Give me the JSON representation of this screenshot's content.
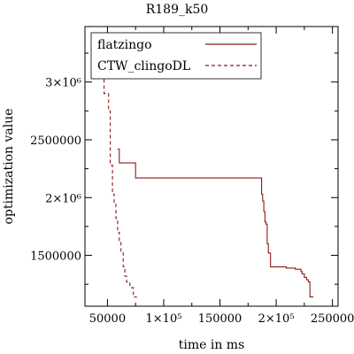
{
  "chart_data": {
    "type": "line",
    "title": "R189_k50",
    "xlabel": "time in ms",
    "ylabel": "optimization value",
    "xlim": [
      30000,
      255000
    ],
    "ylim": [
      1060000,
      3480000
    ],
    "grid": false,
    "legend_position": "top-left",
    "x_ticks": [
      {
        "value": 50000,
        "label": "50000"
      },
      {
        "value": 100000,
        "label": "1×10⁵"
      },
      {
        "value": 150000,
        "label": "150000"
      },
      {
        "value": 200000,
        "label": "2×10⁵"
      },
      {
        "value": 250000,
        "label": "250000"
      }
    ],
    "x_minor_ticks": [
      75000,
      125000,
      175000,
      225000
    ],
    "y_ticks": [
      {
        "value": 1500000,
        "label": "1500000"
      },
      {
        "value": 2000000,
        "label": "2×10⁶"
      },
      {
        "value": 2500000,
        "label": "2500000"
      },
      {
        "value": 3000000,
        "label": "3×10⁶"
      }
    ],
    "y_minor_ticks": [
      1250000,
      1750000,
      2250000,
      2750000,
      3250000
    ],
    "series": [
      {
        "name": "flatzingo",
        "color": "#8b1a1a",
        "style": "solid",
        "step": true,
        "x": [
          59000,
          60500,
          70000,
          75000,
          185000,
          187000,
          188000,
          189000,
          190000,
          191000,
          192000,
          193000,
          195000,
          209000,
          217000,
          222000,
          223000,
          225000,
          227000,
          228500,
          230000
        ],
        "y": [
          2420000,
          2300000,
          2300000,
          2170000,
          2170000,
          2030000,
          1970000,
          1880000,
          1790000,
          1770000,
          1600000,
          1520000,
          1400000,
          1390000,
          1380000,
          1360000,
          1340000,
          1310000,
          1290000,
          1270000,
          1140000
        ]
      },
      {
        "name": "CTW_clingoDL",
        "color": "#8b1a1a",
        "style": "dashed",
        "step": true,
        "x": [
          45000,
          47000,
          51000,
          52500,
          54500,
          56000,
          57500,
          59000,
          60500,
          62000,
          64000,
          65500,
          67000,
          70000,
          73000
        ],
        "y": [
          3220000,
          2900000,
          2750000,
          2280000,
          2030000,
          1960000,
          1820000,
          1700000,
          1620000,
          1530000,
          1400000,
          1320000,
          1270000,
          1220000,
          1140000
        ]
      }
    ]
  }
}
